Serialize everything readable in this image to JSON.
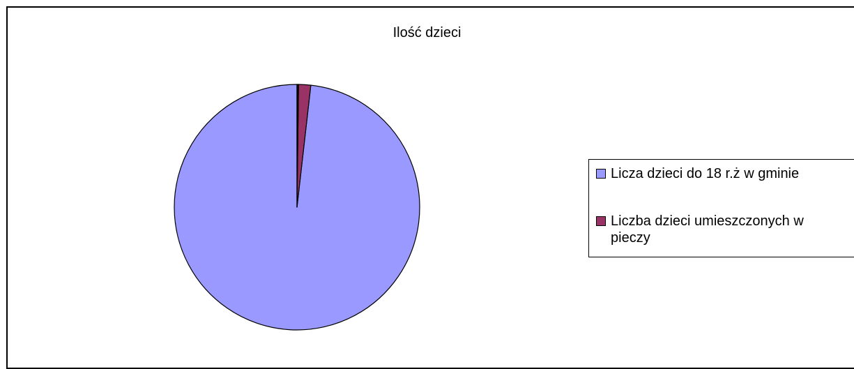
{
  "chart_data": {
    "type": "pie",
    "title": "Ilość dzieci",
    "series": [
      {
        "name": "Licza dzieci do 18 r.ż w gminie",
        "value": 98.2,
        "color": "#9999ff"
      },
      {
        "name": "Liczba dzieci umieszczonych w pieczy",
        "value": 1.6,
        "color": "#993366"
      },
      {
        "name": "",
        "value": 0.2,
        "color": "#000000"
      }
    ],
    "legend_position": "right",
    "border_color": "#000000"
  }
}
